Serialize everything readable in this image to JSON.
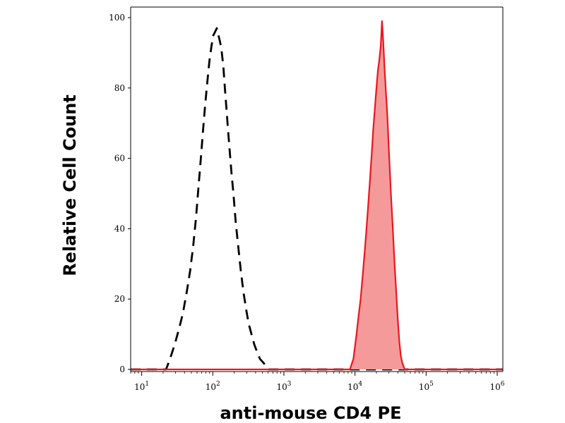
{
  "chart_data": {
    "type": "area",
    "title": "",
    "xlabel": "anti-mouse CD4 PE",
    "ylabel": "Relative Cell Count",
    "xscale": "log",
    "xlim": [
      7,
      1200000
    ],
    "ylim": [
      0,
      100
    ],
    "x_ticks": [
      {
        "value": 10,
        "base": "10",
        "exp": "1"
      },
      {
        "value": 100,
        "base": "10",
        "exp": "2"
      },
      {
        "value": 1000,
        "base": "10",
        "exp": "3"
      },
      {
        "value": 10000,
        "base": "10",
        "exp": "4"
      },
      {
        "value": 100000,
        "base": "10",
        "exp": "5"
      },
      {
        "value": 1000000,
        "base": "10",
        "exp": "6"
      }
    ],
    "y_ticks": [
      "0",
      "20",
      "40",
      "60",
      "80",
      "100"
    ],
    "grid": false,
    "legend": "none",
    "series": [
      {
        "style": "dashed",
        "color": "#000000",
        "fill": "none",
        "points": [
          [
            7,
            0
          ],
          [
            22,
            0
          ],
          [
            23,
            1
          ],
          [
            25,
            3
          ],
          [
            27,
            5
          ],
          [
            30,
            8
          ],
          [
            34,
            12
          ],
          [
            38,
            16
          ],
          [
            43,
            22
          ],
          [
            48,
            28
          ],
          [
            53,
            35
          ],
          [
            58,
            43
          ],
          [
            63,
            52
          ],
          [
            68,
            60
          ],
          [
            73,
            68
          ],
          [
            78,
            75
          ],
          [
            84,
            82
          ],
          [
            90,
            88
          ],
          [
            96,
            92
          ],
          [
            102,
            95
          ],
          [
            108,
            96
          ],
          [
            114,
            97
          ],
          [
            120,
            95
          ],
          [
            127,
            93
          ],
          [
            134,
            90
          ],
          [
            141,
            86
          ],
          [
            148,
            80
          ],
          [
            156,
            74
          ],
          [
            164,
            68
          ],
          [
            173,
            62
          ],
          [
            183,
            56
          ],
          [
            195,
            50
          ],
          [
            210,
            42
          ],
          [
            228,
            35
          ],
          [
            248,
            28
          ],
          [
            270,
            22
          ],
          [
            295,
            17
          ],
          [
            320,
            13
          ],
          [
            350,
            10
          ],
          [
            385,
            7
          ],
          [
            420,
            5
          ],
          [
            460,
            3
          ],
          [
            510,
            2
          ],
          [
            560,
            1
          ],
          [
            610,
            0
          ],
          [
            1200000,
            0
          ]
        ]
      },
      {
        "style": "filled",
        "color": "#e8171d",
        "fill": "#f59a9a",
        "points": [
          [
            7,
            0
          ],
          [
            8500,
            0
          ],
          [
            9500,
            3
          ],
          [
            10500,
            10
          ],
          [
            11200,
            15
          ],
          [
            12000,
            20
          ],
          [
            13000,
            28
          ],
          [
            14000,
            36
          ],
          [
            15000,
            44
          ],
          [
            16000,
            52
          ],
          [
            17000,
            60
          ],
          [
            18000,
            68
          ],
          [
            19000,
            74
          ],
          [
            20000,
            80
          ],
          [
            21000,
            85
          ],
          [
            22000,
            88
          ],
          [
            23000,
            92
          ],
          [
            24000,
            99
          ],
          [
            25000,
            93
          ],
          [
            26000,
            86
          ],
          [
            27000,
            80
          ],
          [
            28500,
            72
          ],
          [
            30000,
            62
          ],
          [
            32000,
            50
          ],
          [
            34000,
            40
          ],
          [
            36000,
            30
          ],
          [
            38000,
            22
          ],
          [
            40000,
            14
          ],
          [
            42000,
            8
          ],
          [
            44000,
            4
          ],
          [
            46000,
            2
          ],
          [
            48000,
            1
          ],
          [
            50000,
            0
          ],
          [
            1200000,
            0
          ]
        ]
      }
    ]
  }
}
